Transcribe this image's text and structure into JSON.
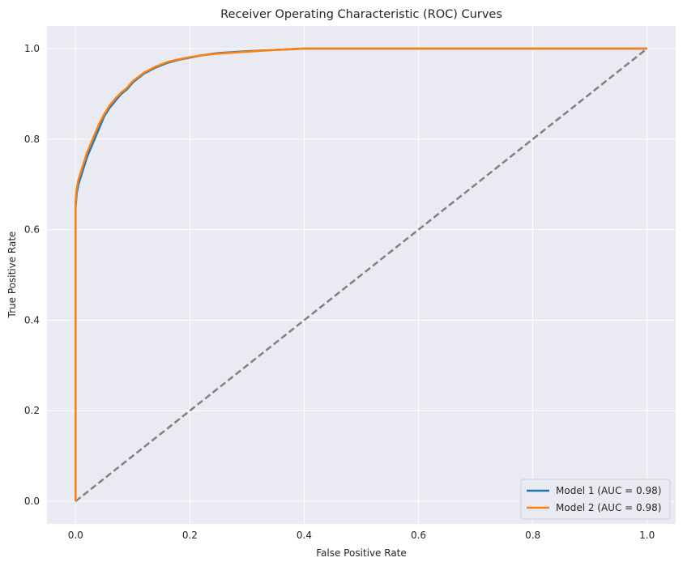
{
  "chart_data": {
    "type": "line",
    "title": "Receiver Operating Characteristic (ROC) Curves",
    "xlabel": "False Positive Rate",
    "ylabel": "True Positive Rate",
    "xlim": [
      -0.05,
      1.05
    ],
    "ylim": [
      -0.05,
      1.05
    ],
    "xticks": [
      0.0,
      0.2,
      0.4,
      0.6,
      0.8,
      1.0
    ],
    "yticks": [
      0.0,
      0.2,
      0.4,
      0.6,
      0.8,
      1.0
    ],
    "xtick_labels": [
      "0.0",
      "0.2",
      "0.4",
      "0.6",
      "0.8",
      "1.0"
    ],
    "ytick_labels": [
      "0.0",
      "0.2",
      "0.4",
      "0.6",
      "0.8",
      "1.0"
    ],
    "grid": true,
    "legend_position": "lower-right",
    "background": "#eaeaf2",
    "series": [
      {
        "name": "Model 1 (AUC = 0.98)",
        "color": "#1f77b4",
        "x": [
          0.0,
          0.0,
          0.002,
          0.005,
          0.01,
          0.015,
          0.02,
          0.03,
          0.04,
          0.05,
          0.06,
          0.07,
          0.08,
          0.09,
          0.1,
          0.12,
          0.14,
          0.16,
          0.18,
          0.2,
          0.22,
          0.25,
          0.3,
          0.35,
          0.4,
          0.5,
          0.6,
          0.7,
          0.8,
          0.9,
          1.0
        ],
        "y": [
          0.0,
          0.65,
          0.68,
          0.7,
          0.72,
          0.74,
          0.76,
          0.79,
          0.82,
          0.85,
          0.87,
          0.885,
          0.9,
          0.91,
          0.925,
          0.945,
          0.958,
          0.968,
          0.975,
          0.98,
          0.985,
          0.99,
          0.994,
          0.997,
          1.0,
          1.0,
          1.0,
          1.0,
          1.0,
          1.0,
          1.0
        ]
      },
      {
        "name": "Model 2 (AUC = 0.98)",
        "color": "#ff7f0e",
        "x": [
          0.0,
          0.0,
          0.002,
          0.005,
          0.01,
          0.015,
          0.02,
          0.03,
          0.04,
          0.05,
          0.06,
          0.07,
          0.08,
          0.09,
          0.1,
          0.12,
          0.14,
          0.16,
          0.18,
          0.2,
          0.22,
          0.25,
          0.3,
          0.35,
          0.4,
          0.5,
          0.6,
          0.7,
          0.8,
          0.9,
          1.0
        ],
        "y": [
          0.0,
          0.66,
          0.69,
          0.71,
          0.73,
          0.75,
          0.77,
          0.8,
          0.83,
          0.855,
          0.875,
          0.89,
          0.903,
          0.913,
          0.928,
          0.947,
          0.96,
          0.97,
          0.976,
          0.981,
          0.985,
          0.989,
          0.993,
          0.997,
          1.0,
          1.0,
          1.0,
          1.0,
          1.0,
          1.0,
          1.0
        ]
      }
    ],
    "reference_line": {
      "x": [
        0.0,
        1.0
      ],
      "y": [
        0.0,
        1.0
      ],
      "color": "#808080",
      "style": "dashed"
    }
  }
}
